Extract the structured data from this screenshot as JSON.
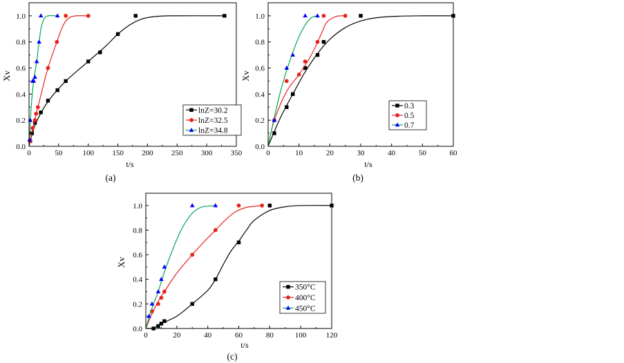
{
  "chart_data": [
    {
      "type": "scatter",
      "panel_label": "(a)",
      "xlabel": "t/s",
      "ylabel": "Xv",
      "xlim": [
        0,
        350
      ],
      "ylim": [
        0,
        1.1
      ],
      "xticks": [
        "0",
        "50",
        "100",
        "150",
        "200",
        "250",
        "300",
        "350"
      ],
      "yticks": [
        "0.0",
        "0.2",
        "0.4",
        "0.6",
        "0.8",
        "1.0"
      ],
      "legend_position": "right-middle",
      "series": [
        {
          "name": "lnZ=30.2",
          "color": "#000000",
          "marker": "square",
          "points": [
            [
              2,
              0.04
            ],
            [
              5,
              0.1
            ],
            [
              10,
              0.18
            ],
            [
              20,
              0.26
            ],
            [
              32,
              0.35
            ],
            [
              48,
              0.43
            ],
            [
              62,
              0.5
            ],
            [
              100,
              0.65
            ],
            [
              120,
              0.72
            ],
            [
              150,
              0.86
            ],
            [
              180,
              1.0
            ],
            [
              330,
              1.0
            ]
          ],
          "curve": [
            [
              0,
              0
            ],
            [
              10,
              0.16
            ],
            [
              30,
              0.33
            ],
            [
              60,
              0.49
            ],
            [
              100,
              0.65
            ],
            [
              130,
              0.77
            ],
            [
              150,
              0.86
            ],
            [
              170,
              0.93
            ],
            [
              190,
              0.975
            ],
            [
              210,
              0.993
            ],
            [
              240,
              1.0
            ],
            [
              330,
              1.0
            ]
          ]
        },
        {
          "name": "lnZ=32.5",
          "color": "#e8211c",
          "marker": "circle",
          "points": [
            [
              2,
              0.04
            ],
            [
              6,
              0.14
            ],
            [
              10,
              0.2
            ],
            [
              12,
              0.25
            ],
            [
              15,
              0.3
            ],
            [
              32,
              0.6
            ],
            [
              47,
              0.8
            ],
            [
              62,
              1.0
            ],
            [
              100,
              1.0
            ]
          ],
          "curve": [
            [
              0,
              0
            ],
            [
              10,
              0.21
            ],
            [
              20,
              0.39
            ],
            [
              32,
              0.6
            ],
            [
              47,
              0.8
            ],
            [
              55,
              0.9
            ],
            [
              62,
              0.96
            ],
            [
              70,
              0.99
            ],
            [
              80,
              1.0
            ],
            [
              100,
              1.0
            ]
          ]
        },
        {
          "name": "lnZ=34.8",
          "color": "#00a651",
          "marker_color": "#0000ff",
          "marker": "triangle",
          "points": [
            [
              1,
              0.05
            ],
            [
              2,
              0.2
            ],
            [
              6,
              0.5
            ],
            [
              8,
              0.5
            ],
            [
              10,
              0.53
            ],
            [
              13,
              0.65
            ],
            [
              17,
              0.8
            ],
            [
              20,
              1.0
            ],
            [
              48,
              1.0
            ]
          ],
          "curve": [
            [
              0,
              0
            ],
            [
              4,
              0.32
            ],
            [
              8,
              0.51
            ],
            [
              13,
              0.65
            ],
            [
              17,
              0.8
            ],
            [
              21,
              0.92
            ],
            [
              26,
              0.98
            ],
            [
              32,
              1.0
            ],
            [
              48,
              1.0
            ]
          ]
        }
      ]
    },
    {
      "type": "scatter",
      "panel_label": "(b)",
      "xlabel": "t/s",
      "ylabel": "Xv",
      "xlim": [
        0,
        60
      ],
      "ylim": [
        0,
        1.1
      ],
      "xticks": [
        "0",
        "10",
        "20",
        "30",
        "40",
        "50",
        "60"
      ],
      "yticks": [
        "0.0",
        "0.2",
        "0.4",
        "0.6",
        "0.8",
        "1.0"
      ],
      "legend_position": "right-middle",
      "series": [
        {
          "name": "0.3",
          "color": "#000000",
          "marker": "square",
          "points": [
            [
              2,
              0.1
            ],
            [
              6,
              0.3
            ],
            [
              8,
              0.4
            ],
            [
              12,
              0.6
            ],
            [
              16,
              0.7
            ],
            [
              18,
              0.8
            ],
            [
              30,
              1.0
            ],
            [
              60,
              1.0
            ]
          ],
          "curve": [
            [
              0,
              0
            ],
            [
              4,
              0.22
            ],
            [
              8,
              0.4
            ],
            [
              12,
              0.57
            ],
            [
              16,
              0.71
            ],
            [
              20,
              0.82
            ],
            [
              25,
              0.91
            ],
            [
              30,
              0.96
            ],
            [
              35,
              0.985
            ],
            [
              42,
              0.997
            ],
            [
              50,
              1.0
            ],
            [
              60,
              1.0
            ]
          ]
        },
        {
          "name": "0.5",
          "color": "#e8211c",
          "marker": "circle",
          "points": [
            [
              2,
              0.2
            ],
            [
              6,
              0.5
            ],
            [
              10,
              0.55
            ],
            [
              12,
              0.65
            ],
            [
              16,
              0.8
            ],
            [
              18,
              1.0
            ],
            [
              25,
              1.0
            ]
          ],
          "curve": [
            [
              0,
              0
            ],
            [
              2,
              0.2
            ],
            [
              6,
              0.42
            ],
            [
              10,
              0.55
            ],
            [
              14,
              0.7
            ],
            [
              17,
              0.85
            ],
            [
              19,
              0.95
            ],
            [
              22,
              0.995
            ],
            [
              25,
              1.0
            ]
          ]
        },
        {
          "name": "0.7",
          "color": "#00a651",
          "marker_color": "#0000ff",
          "marker": "triangle",
          "points": [
            [
              2,
              0.2
            ],
            [
              6,
              0.6
            ],
            [
              8,
              0.7
            ],
            [
              12,
              1.0
            ],
            [
              16,
              1.0
            ]
          ],
          "curve": [
            [
              0,
              0
            ],
            [
              2,
              0.22
            ],
            [
              4,
              0.42
            ],
            [
              6,
              0.58
            ],
            [
              8,
              0.72
            ],
            [
              10,
              0.84
            ],
            [
              12,
              0.93
            ],
            [
              14,
              0.985
            ],
            [
              16,
              1.0
            ]
          ]
        }
      ]
    },
    {
      "type": "scatter",
      "panel_label": "(c)",
      "xlabel": "t/s",
      "ylabel": "Xv",
      "xlim": [
        0,
        120
      ],
      "ylim": [
        0,
        1.1
      ],
      "xticks": [
        "0",
        "20",
        "40",
        "60",
        "80",
        "100",
        "120"
      ],
      "yticks": [
        "0.0",
        "0.2",
        "0.4",
        "0.6",
        "0.8",
        "1.0"
      ],
      "legend_position": "bottom-right",
      "series": [
        {
          "name": "350°C",
          "color": "#000000",
          "marker": "square",
          "points": [
            [
              5,
              0.0
            ],
            [
              8,
              0.02
            ],
            [
              10,
              0.04
            ],
            [
              12,
              0.06
            ],
            [
              30,
              0.2
            ],
            [
              45,
              0.4
            ],
            [
              60,
              0.7
            ],
            [
              80,
              1.0
            ],
            [
              120,
              1.0
            ]
          ],
          "curve": [
            [
              0,
              0
            ],
            [
              5,
              0.005
            ],
            [
              10,
              0.04
            ],
            [
              20,
              0.1
            ],
            [
              30,
              0.2
            ],
            [
              40,
              0.31
            ],
            [
              45,
              0.4
            ],
            [
              50,
              0.52
            ],
            [
              55,
              0.63
            ],
            [
              60,
              0.71
            ],
            [
              65,
              0.8
            ],
            [
              70,
              0.88
            ],
            [
              80,
              0.96
            ],
            [
              90,
              0.99
            ],
            [
              100,
              1.0
            ],
            [
              120,
              1.0
            ]
          ]
        },
        {
          "name": "400°C",
          "color": "#e8211c",
          "marker": "circle",
          "points": [
            [
              4,
              0.14
            ],
            [
              8,
              0.2
            ],
            [
              10,
              0.25
            ],
            [
              12,
              0.3
            ],
            [
              30,
              0.6
            ],
            [
              45,
              0.8
            ],
            [
              60,
              1.0
            ],
            [
              75,
              1.0
            ]
          ],
          "curve": [
            [
              0,
              0
            ],
            [
              4,
              0.12
            ],
            [
              8,
              0.22
            ],
            [
              12,
              0.3
            ],
            [
              20,
              0.45
            ],
            [
              30,
              0.6
            ],
            [
              38,
              0.71
            ],
            [
              45,
              0.8
            ],
            [
              52,
              0.89
            ],
            [
              58,
              0.95
            ],
            [
              65,
              0.985
            ],
            [
              75,
              1.0
            ]
          ]
        },
        {
          "name": "450°C",
          "color": "#00a651",
          "marker_color": "#0000ff",
          "marker": "triangle",
          "points": [
            [
              2,
              0.1
            ],
            [
              4,
              0.2
            ],
            [
              8,
              0.3
            ],
            [
              10,
              0.4
            ],
            [
              12,
              0.5
            ],
            [
              30,
              1.0
            ],
            [
              45,
              1.0
            ]
          ],
          "curve": [
            [
              0,
              0
            ],
            [
              2,
              0.09
            ],
            [
              5,
              0.2
            ],
            [
              8,
              0.3
            ],
            [
              12,
              0.46
            ],
            [
              17,
              0.63
            ],
            [
              22,
              0.78
            ],
            [
              27,
              0.89
            ],
            [
              32,
              0.96
            ],
            [
              37,
              0.99
            ],
            [
              45,
              1.0
            ]
          ]
        }
      ]
    }
  ]
}
